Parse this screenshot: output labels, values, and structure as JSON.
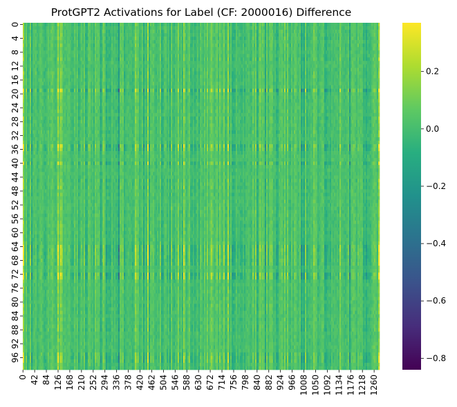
{
  "chart_data": {
    "type": "heatmap",
    "title": "ProtGPT2 Activations for Label (CF: 2000016) Difference",
    "xlabel": "",
    "ylabel": "",
    "n_rows": 100,
    "n_cols": 1280,
    "x_ticks": [
      "0",
      "42",
      "84",
      "126",
      "168",
      "210",
      "252",
      "294",
      "336",
      "378",
      "420",
      "462",
      "504",
      "546",
      "588",
      "630",
      "672",
      "714",
      "756",
      "798",
      "840",
      "882",
      "924",
      "966",
      "1008",
      "1050",
      "1092",
      "1134",
      "1176",
      "1218",
      "1260"
    ],
    "y_ticks": [
      "0",
      "4",
      "8",
      "12",
      "16",
      "20",
      "24",
      "28",
      "32",
      "36",
      "40",
      "44",
      "48",
      "52",
      "56",
      "60",
      "64",
      "68",
      "72",
      "76",
      "80",
      "84",
      "88",
      "92",
      "96"
    ],
    "colormap": "viridis",
    "value_range": [
      -0.84,
      0.37
    ],
    "colorbar_ticks": [
      "0.2",
      "0.0",
      "−0.2",
      "−0.4",
      "−0.6",
      "−0.8"
    ],
    "colorbar_tick_values": [
      0.2,
      0.0,
      -0.2,
      -0.4,
      -0.6,
      -0.8
    ]
  }
}
